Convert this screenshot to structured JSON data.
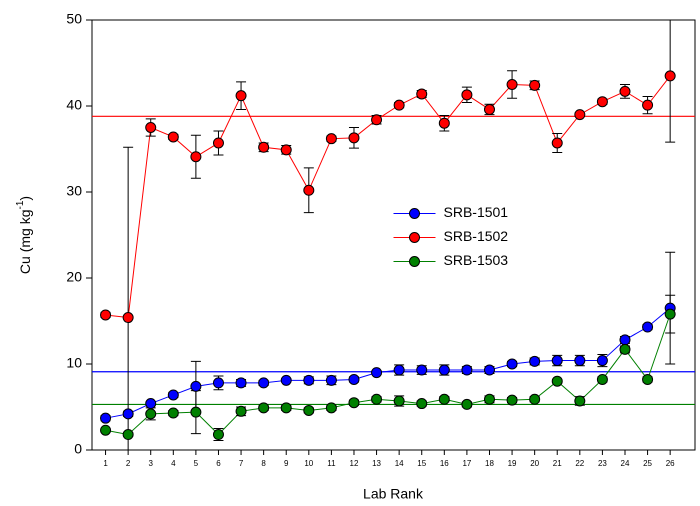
{
  "chart_data": {
    "type": "line",
    "x_label": "Lab Rank",
    "y_label": {
      "text": "Cu (mg kg",
      "superscript": "-1",
      "suffix": ")"
    },
    "x": [
      1,
      2,
      3,
      4,
      5,
      6,
      7,
      8,
      9,
      10,
      11,
      12,
      13,
      14,
      15,
      16,
      17,
      18,
      19,
      20,
      21,
      22,
      23,
      24,
      25,
      26
    ],
    "xlim": [
      0.4,
      27.1
    ],
    "xticks": [
      1,
      2,
      3,
      4,
      5,
      6,
      7,
      8,
      9,
      10,
      11,
      12,
      13,
      14,
      15,
      16,
      17,
      18,
      19,
      20,
      21,
      22,
      23,
      24,
      25,
      26
    ],
    "ylim": [
      0,
      50
    ],
    "yticks": [
      0,
      10,
      20,
      30,
      40,
      50
    ],
    "legend": "center-right",
    "series": [
      {
        "name": "SRB-1501",
        "color": "#0000ff",
        "values": [
          3.7,
          4.2,
          5.4,
          6.4,
          7.4,
          7.8,
          7.8,
          7.8,
          8.1,
          8.1,
          8.1,
          8.2,
          9.0,
          9.3,
          9.3,
          9.3,
          9.3,
          9.3,
          10.0,
          10.3,
          10.4,
          10.4,
          10.4,
          12.8,
          14.3,
          16.5
        ],
        "errors": [
          0.3,
          0.3,
          0.2,
          0.3,
          2.9,
          0.8,
          0.4,
          0.3,
          0.2,
          0.4,
          0.5,
          0.3,
          0.2,
          0.6,
          0.5,
          0.6,
          0.4,
          0.4,
          0.3,
          0.4,
          0.6,
          0.6,
          0.7,
          0.4,
          0.3,
          6.5
        ],
        "reference": 9.1
      },
      {
        "name": "SRB-1502",
        "color": "#ff0000",
        "values": [
          15.7,
          15.4,
          37.5,
          36.4,
          34.1,
          35.7,
          41.2,
          35.2,
          34.9,
          30.2,
          36.2,
          36.3,
          38.4,
          40.1,
          41.4,
          38.0,
          41.3,
          39.6,
          42.5,
          42.4,
          35.7,
          39.0,
          40.5,
          41.7,
          40.1,
          43.5
        ],
        "errors": [
          0.3,
          19.8,
          1.0,
          0.3,
          2.5,
          1.4,
          1.6,
          0.5,
          0.5,
          2.6,
          0.3,
          1.2,
          0.5,
          0.3,
          0.4,
          0.9,
          0.9,
          0.6,
          1.6,
          0.5,
          1.1,
          0.2,
          0.3,
          0.8,
          1.0,
          7.7
        ],
        "reference": 38.8
      },
      {
        "name": "SRB-1503",
        "color": "#008000",
        "values": [
          2.3,
          1.8,
          4.2,
          4.3,
          4.4,
          1.8,
          4.5,
          4.9,
          4.9,
          4.6,
          4.9,
          5.5,
          5.9,
          5.7,
          5.4,
          5.9,
          5.3,
          5.9,
          5.8,
          5.9,
          8.0,
          5.7,
          8.2,
          11.7,
          8.2,
          15.8
        ],
        "errors": [
          0.2,
          0.2,
          0.7,
          0.3,
          2.5,
          0.7,
          0.5,
          0.3,
          0.3,
          0.3,
          0.3,
          0.3,
          0.3,
          0.6,
          0.3,
          0.3,
          0.3,
          0.4,
          0.3,
          0.3,
          0.2,
          0.5,
          0.3,
          0.4,
          0.3,
          2.2
        ],
        "reference": 5.3
      }
    ]
  }
}
